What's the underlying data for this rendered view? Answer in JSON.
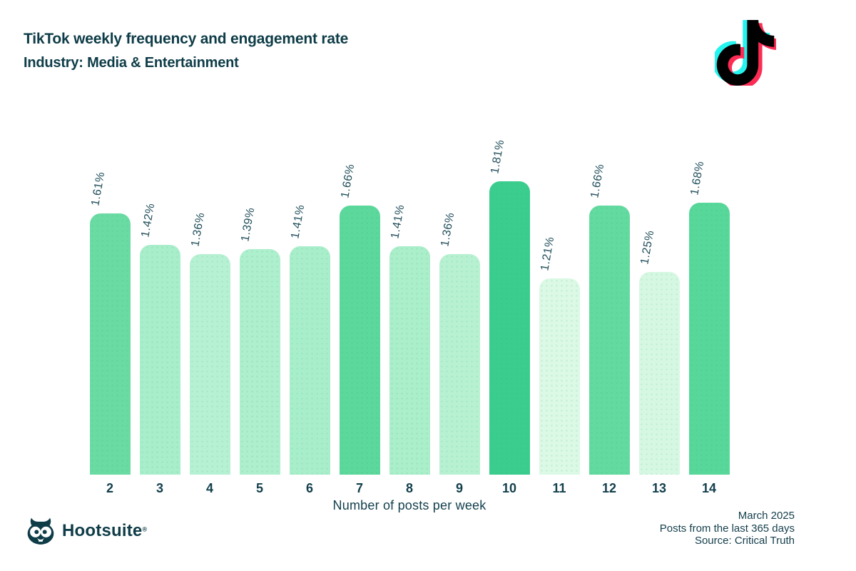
{
  "header": {
    "title_line1": "TikTok weekly frequency and engagement rate",
    "title_line2": "Industry: Media & Entertainment"
  },
  "icons": {
    "tiktok": "tiktok-note-icon",
    "hootsuite_owl": "hootsuite-owl-icon"
  },
  "chart_data": {
    "type": "bar",
    "title": "TikTok weekly frequency and engagement rate",
    "subtitle": "Industry: Media & Entertainment",
    "categories": [
      "2",
      "3",
      "4",
      "5",
      "6",
      "7",
      "8",
      "9",
      "10",
      "11",
      "12",
      "13",
      "14"
    ],
    "values": [
      1.61,
      1.42,
      1.36,
      1.39,
      1.41,
      1.66,
      1.41,
      1.36,
      1.81,
      1.21,
      1.66,
      1.25,
      1.68
    ],
    "value_labels": [
      "1.61%",
      "1.42%",
      "1.36%",
      "1.39%",
      "1.41%",
      "1.66%",
      "1.41%",
      "1.36%",
      "1.81%",
      "1.21%",
      "1.66%",
      "1.25%",
      "1.68%"
    ],
    "bar_colors": [
      "#6bdba4",
      "#a9eecb",
      "#b7f1d3",
      "#aeefcd",
      "#a9eecb",
      "#5cd89c",
      "#aaeeca",
      "#b7f1d2",
      "#3bcd8e",
      "#dbf9e5",
      "#63da9f",
      "#d6f8e2",
      "#58d79a"
    ],
    "xlabel": "Number of posts per week",
    "ylabel": "",
    "ylim": [
      0,
      1.81
    ],
    "grid": false,
    "legend": "none",
    "bar_corner": "rounded-top",
    "value_label_rotation_deg": -80
  },
  "footer": {
    "brand": "Hootsuite",
    "registered": "®",
    "right_lines": [
      "March 2025",
      "Posts from the last 365 days",
      "Source: Critical Truth"
    ]
  },
  "colors": {
    "background": "#ffffff",
    "title_text": "#0e3c47",
    "tick_text": "#123f4c",
    "value_label_text": "#23505c",
    "footer_text": "#16404d",
    "tiktok_cyan": "#25f4ee",
    "tiktok_pink": "#fe2c55",
    "tiktok_black": "#010101"
  }
}
